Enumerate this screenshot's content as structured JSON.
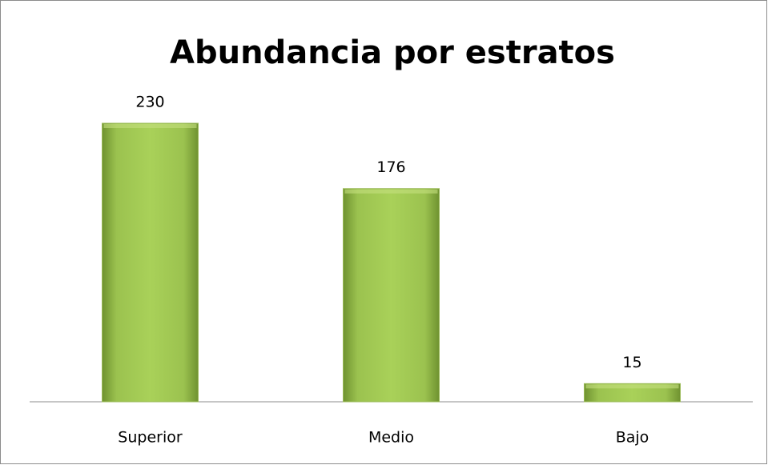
{
  "chart_data": {
    "type": "bar",
    "title": "Abundancia por estratos",
    "categories": [
      "Superior",
      "Medio",
      "Bajo"
    ],
    "values": [
      230,
      176,
      15
    ],
    "color": "#9bbb59"
  }
}
